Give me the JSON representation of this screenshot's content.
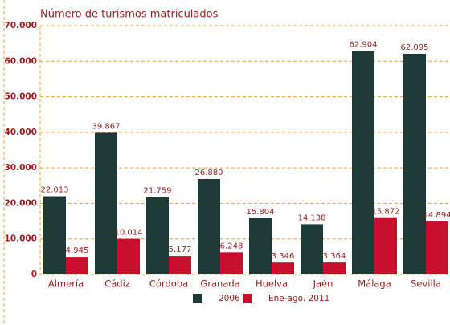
{
  "chart_data": {
    "type": "bar",
    "title": "Número de turismos matriculados",
    "categories": [
      "Almería",
      "Cádiz",
      "Córdoba",
      "Granada",
      "Huelva",
      "Jaén",
      "Málaga",
      "Sevilla"
    ],
    "series": [
      {
        "name": "2006",
        "color": "#1e3a36",
        "values": [
          22013,
          39867,
          21759,
          26880,
          15804,
          14138,
          62904,
          62095
        ],
        "value_labels": [
          "22.013",
          "39.867",
          "21.759",
          "26.880",
          "15.804",
          "14.138",
          "62.904",
          "62.095"
        ]
      },
      {
        "name": "Ene-ago. 2011",
        "color": "#c8102e",
        "values": [
          4945,
          10014,
          5177,
          6248,
          3346,
          3364,
          15872,
          14894
        ],
        "value_labels": [
          "4.945",
          "10.014",
          "5.177",
          "6.248",
          "3.346",
          "3.364",
          "15.872",
          "14.894"
        ]
      }
    ],
    "ylim": [
      0,
      70000
    ],
    "yticks": [
      0,
      {
        "value": 10000,
        "label": "10.000"
      },
      {
        "value": 20000,
        "label": "20.000"
      },
      {
        "value": 30000,
        "label": "30.000"
      },
      {
        "value": 40000,
        "label": "40.000"
      },
      {
        "value": 50000,
        "label": "50.000"
      },
      {
        "value": 60000,
        "label": "60.000"
      },
      {
        "value": 70000,
        "label": "70.000"
      }
    ],
    "grid": true
  }
}
